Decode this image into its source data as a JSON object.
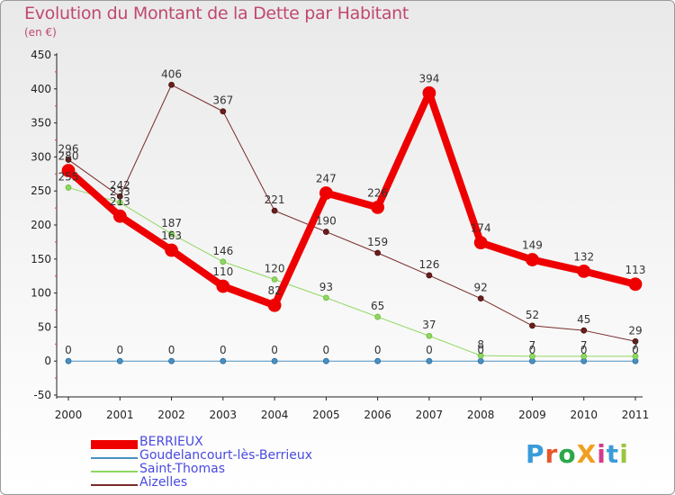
{
  "title": "Evolution du Montant de la Dette par Habitant",
  "subtitle": "(en €)",
  "logo": {
    "text": "ProXiti",
    "letters": [
      {
        "ch": "P",
        "color": "#3a9bd9"
      },
      {
        "ch": "r",
        "color": "#e7562a"
      },
      {
        "ch": "o",
        "color": "#2aa84a"
      },
      {
        "ch": "X",
        "color": "#f0a020"
      },
      {
        "ch": "i",
        "color": "#d43b8c"
      },
      {
        "ch": "t",
        "color": "#3a9bd9"
      },
      {
        "ch": "i",
        "color": "#9bc53d"
      }
    ]
  },
  "chart_data": {
    "type": "line",
    "title": "Evolution du Montant de la Dette par Habitant",
    "ylabel": "(en €)",
    "xlabel": "",
    "ylim": [
      -50,
      450
    ],
    "yticks": [
      -50,
      0,
      50,
      100,
      150,
      200,
      250,
      300,
      350,
      400,
      450
    ],
    "categories": [
      "2000",
      "2001",
      "2002",
      "2003",
      "2004",
      "2005",
      "2006",
      "2007",
      "2008",
      "2009",
      "2010",
      "2011"
    ],
    "series": [
      {
        "name": "BERRIEUX",
        "color": "#ee0000",
        "values": [
          280,
          213,
          163,
          110,
          82,
          247,
          226,
          394,
          174,
          149,
          132,
          113
        ],
        "labels": [
          "280",
          "213",
          "163",
          "110",
          "82",
          "247",
          "226",
          "394",
          "174",
          "149",
          "132",
          "113"
        ]
      },
      {
        "name": "Goudelancourt-lès-Berrieux",
        "color": "#4a8fc0",
        "values": [
          0,
          0,
          0,
          0,
          0,
          0,
          0,
          0,
          0,
          0,
          0,
          0
        ],
        "labels": [
          "0",
          "0",
          "0",
          "0",
          "0",
          "0",
          "0",
          "0",
          "0",
          "0",
          "0",
          "0"
        ]
      },
      {
        "name": "Saint-Thomas",
        "color": "#8fd860",
        "values": [
          255,
          233,
          187,
          146,
          120,
          93,
          65,
          37,
          8,
          7,
          7,
          7
        ],
        "labels": [
          "255",
          "233",
          "187",
          "146",
          "120",
          "93",
          "65",
          "37",
          "8",
          "7",
          "7",
          "7"
        ]
      },
      {
        "name": "Aizelles",
        "color": "#7a2a2a",
        "values": [
          296,
          242,
          406,
          367,
          221,
          190,
          159,
          126,
          92,
          52,
          45,
          29
        ],
        "labels": [
          "296",
          "242",
          "406",
          "367",
          "221",
          "190",
          "159",
          "126",
          "92",
          "52",
          "45",
          "29"
        ]
      }
    ],
    "grid": false,
    "legend": "bottom-left"
  }
}
